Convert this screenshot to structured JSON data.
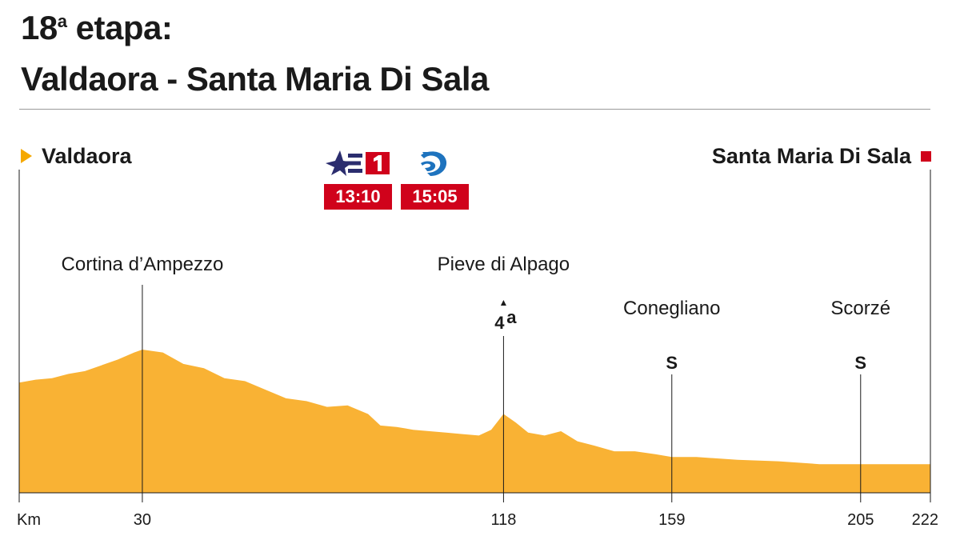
{
  "header": {
    "stage_number": "18",
    "stage_sup": "a",
    "stage_word": "etapa:",
    "route": "Valdaora - Santa Maria Di Sala"
  },
  "start": {
    "name": "Valdaora",
    "marker_color": "#f5a800"
  },
  "finish": {
    "name": "Santa Maria Di Sala",
    "marker_color": "#d0021b"
  },
  "broadcast": [
    {
      "channel_icon": "eurosport-1-logo-icon",
      "time": "13:10"
    },
    {
      "channel_icon": "broadcaster-logo-icon",
      "time": "15:05"
    }
  ],
  "colors": {
    "profile_fill": "#f9b234",
    "time_box": "#d0021b",
    "logo_navy": "#2b2d6e",
    "logo_blue": "#1e73be"
  },
  "chart_data": {
    "type": "area",
    "xlabel": "Km",
    "xlim": [
      0,
      222
    ],
    "x_ticks": [
      {
        "km": 30,
        "label": "30"
      },
      {
        "km": 118,
        "label": "118"
      },
      {
        "km": 159,
        "label": "159"
      },
      {
        "km": 205,
        "label": "205"
      },
      {
        "km": 222,
        "label": "222"
      }
    ],
    "profile": [
      [
        0,
        0.77
      ],
      [
        4,
        0.79
      ],
      [
        8,
        0.8
      ],
      [
        12,
        0.83
      ],
      [
        16,
        0.85
      ],
      [
        20,
        0.89
      ],
      [
        24,
        0.93
      ],
      [
        28,
        0.98
      ],
      [
        30,
        1.0
      ],
      [
        35,
        0.98
      ],
      [
        40,
        0.9
      ],
      [
        45,
        0.87
      ],
      [
        50,
        0.8
      ],
      [
        55,
        0.78
      ],
      [
        60,
        0.72
      ],
      [
        65,
        0.66
      ],
      [
        70,
        0.64
      ],
      [
        75,
        0.6
      ],
      [
        80,
        0.61
      ],
      [
        85,
        0.55
      ],
      [
        88,
        0.47
      ],
      [
        92,
        0.46
      ],
      [
        96,
        0.44
      ],
      [
        100,
        0.43
      ],
      [
        104,
        0.42
      ],
      [
        108,
        0.41
      ],
      [
        112,
        0.4
      ],
      [
        115,
        0.44
      ],
      [
        118,
        0.55
      ],
      [
        121,
        0.49
      ],
      [
        124,
        0.42
      ],
      [
        128,
        0.4
      ],
      [
        132,
        0.43
      ],
      [
        136,
        0.36
      ],
      [
        140,
        0.33
      ],
      [
        145,
        0.29
      ],
      [
        150,
        0.29
      ],
      [
        155,
        0.27
      ],
      [
        159,
        0.25
      ],
      [
        165,
        0.25
      ],
      [
        175,
        0.23
      ],
      [
        185,
        0.22
      ],
      [
        195,
        0.2
      ],
      [
        205,
        0.2
      ],
      [
        215,
        0.2
      ],
      [
        222,
        0.2
      ]
    ],
    "places": [
      {
        "name": "Cortina d’Ampezzo",
        "km": 30
      },
      {
        "name": "Pieve di Alpago",
        "km": 118,
        "climb_category": "4",
        "climb_sup": "a"
      },
      {
        "name": "Conegliano",
        "km": 159,
        "sprint": "S"
      },
      {
        "name": "Scorzé",
        "km": 205,
        "sprint": "S"
      }
    ]
  }
}
